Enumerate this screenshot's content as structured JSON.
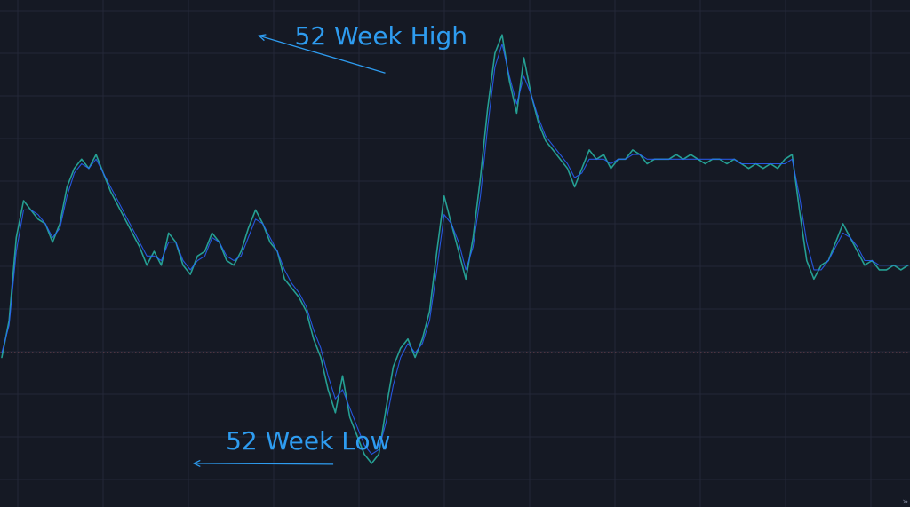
{
  "chart_data": {
    "type": "line",
    "title": "",
    "xlabel": "",
    "ylabel": "",
    "grid": true,
    "theme": "dark",
    "ylim": [
      0,
      100
    ],
    "x": [
      0,
      2,
      4,
      6,
      8,
      10,
      12,
      14,
      16,
      18,
      20,
      22,
      24,
      26,
      28,
      30,
      32,
      34,
      36,
      38,
      40,
      42,
      44,
      46,
      48,
      50,
      52,
      54,
      56,
      58,
      60,
      62,
      64,
      66,
      68,
      70,
      72,
      74,
      76,
      78,
      80,
      82,
      84,
      86,
      88,
      90,
      92,
      94,
      96,
      98,
      100,
      102,
      104,
      106,
      108,
      110,
      112,
      114,
      116,
      118,
      120,
      122,
      124,
      126,
      128,
      130,
      132,
      134,
      136,
      138,
      140,
      142,
      144,
      146,
      148,
      150,
      152,
      154,
      156,
      158,
      160,
      162,
      164,
      166,
      168,
      170,
      172,
      174,
      176,
      178,
      180,
      182,
      184,
      186,
      188,
      190,
      192,
      194,
      196,
      198,
      200,
      202,
      204,
      206,
      208,
      210,
      212,
      214,
      216,
      218,
      220,
      222,
      224,
      226,
      228,
      230,
      232,
      234,
      236,
      238,
      240,
      242,
      244,
      246,
      248,
      250
    ],
    "series": [
      {
        "color": "#26a69a",
        "values": [
          29,
          37,
          55,
          63,
          61,
          59,
          58,
          54,
          58,
          66,
          70,
          72,
          70,
          73,
          69,
          65,
          62,
          59,
          56,
          53,
          49,
          52,
          49,
          56,
          54,
          49,
          47,
          51,
          52,
          56,
          54,
          50,
          49,
          52,
          57,
          61,
          58,
          54,
          52,
          46,
          44,
          42,
          39,
          33,
          29,
          22,
          17,
          25,
          16,
          12,
          8,
          6,
          8,
          18,
          27,
          31,
          33,
          29,
          33,
          39,
          52,
          64,
          58,
          52,
          46,
          55,
          68,
          83,
          95,
          99,
          89,
          82,
          94,
          86,
          80,
          76,
          74,
          72,
          70,
          66,
          70,
          74,
          72,
          73,
          70,
          72,
          72,
          74,
          73,
          71,
          72,
          72,
          72,
          73,
          72,
          73,
          72,
          71,
          72,
          72,
          71,
          72,
          71,
          70,
          71,
          70,
          71,
          70,
          72,
          73,
          61,
          50,
          46,
          49,
          50,
          54,
          58,
          55,
          52,
          49,
          50,
          48,
          48,
          49,
          48,
          49
        ]
      },
      {
        "color": "#2962ff",
        "values": [
          30,
          36,
          52,
          61,
          61,
          60,
          58,
          55,
          57,
          64,
          69,
          71,
          70,
          72,
          69,
          66,
          63,
          60,
          57,
          54,
          51,
          51,
          50,
          54,
          54,
          50,
          48,
          50,
          51,
          55,
          54,
          51,
          50,
          51,
          55,
          59,
          58,
          55,
          52,
          48,
          45,
          43,
          40,
          35,
          31,
          25,
          20,
          22,
          18,
          14,
          10,
          8,
          9,
          15,
          23,
          29,
          32,
          30,
          32,
          37,
          48,
          60,
          58,
          54,
          48,
          53,
          64,
          79,
          92,
          97,
          90,
          84,
          90,
          86,
          81,
          77,
          75,
          73,
          71,
          68,
          69,
          72,
          72,
          72,
          71,
          72,
          72,
          73,
          73,
          72,
          72,
          72,
          72,
          72,
          72,
          72,
          72,
          72,
          72,
          72,
          72,
          72,
          71,
          71,
          71,
          71,
          71,
          71,
          71,
          72,
          64,
          54,
          48,
          48,
          50,
          53,
          56,
          55,
          53,
          50,
          50,
          49,
          49,
          49,
          49,
          49
        ]
      }
    ],
    "reference_line": {
      "y": 30,
      "color": "#d96a6a",
      "style": "dotted"
    },
    "annotations": [
      {
        "text": "52 Week High",
        "x": 69,
        "y": 99,
        "color": "#2e9cf0"
      },
      {
        "text": "52 Week Low",
        "x": 51,
        "y": 6,
        "color": "#2e9cf0"
      }
    ]
  },
  "ui": {
    "scroll_hint": "»"
  }
}
